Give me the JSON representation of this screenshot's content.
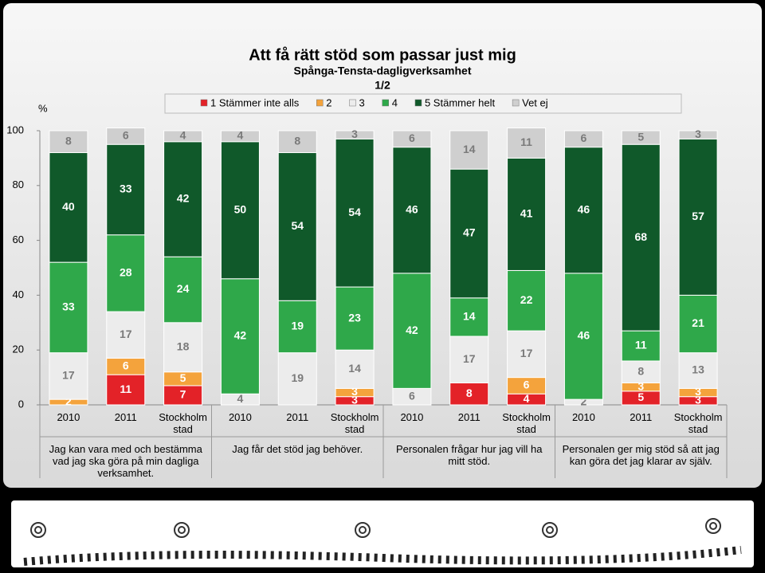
{
  "chart_data": {
    "type": "stacked_bar",
    "title": "Att få rätt stöd som passar just mig",
    "subtitle": "Spånga-Tensta-dagligverksamhet",
    "page": "1/2",
    "y_label": "%",
    "categories": [
      "2010",
      "2011",
      "Stockholm stad",
      "2010",
      "2011",
      "Stockholm stad",
      "2010",
      "2011",
      "Stockholm stad",
      "2010",
      "2011",
      "Stockholm stad"
    ],
    "groups": [
      "Jag kan vara med och bestämma vad jag ska göra på min dagliga verksamhet.",
      "Jag får det stöd jag behöver.",
      "Personalen frågar hur jag vill ha mitt stöd.",
      "Personalen ger mig stöd så att jag kan göra det jag klarar av själv."
    ],
    "series": [
      {
        "name": "1 Stämmer inte alls",
        "color": "#e32228",
        "values": [
          null,
          11,
          7,
          null,
          null,
          3,
          null,
          8,
          4,
          null,
          5,
          3
        ]
      },
      {
        "name": "2",
        "color": "#f4a33c",
        "values": [
          2,
          6,
          5,
          null,
          null,
          3,
          null,
          null,
          6,
          null,
          3,
          3
        ]
      },
      {
        "name": "3",
        "color": "#ececec",
        "values": [
          17,
          17,
          18,
          4,
          19,
          14,
          6,
          17,
          17,
          2,
          8,
          13
        ]
      },
      {
        "name": "4",
        "color": "#2fa84a",
        "values": [
          33,
          28,
          24,
          42,
          19,
          23,
          42,
          14,
          22,
          46,
          11,
          21
        ]
      },
      {
        "name": "5 Stämmer helt",
        "color": "#10592a",
        "values": [
          40,
          33,
          42,
          50,
          54,
          54,
          46,
          47,
          41,
          46,
          68,
          57
        ]
      },
      {
        "name": "Vet ej",
        "color": "#cfcfcf",
        "values": [
          8,
          6,
          4,
          4,
          8,
          3,
          6,
          14,
          11,
          6,
          5,
          3
        ]
      }
    ],
    "ylim": [
      0,
      100
    ],
    "yticks": [
      0,
      20,
      40,
      60,
      80,
      100
    ]
  }
}
